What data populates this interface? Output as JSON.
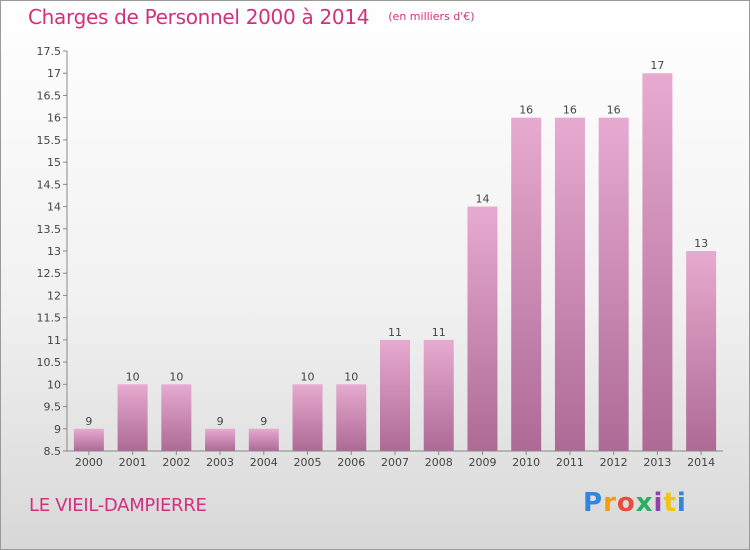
{
  "chart_data": {
    "type": "bar",
    "title": "Charges de Personnel 2000 à 2014",
    "unit_note": "(en milliers d'€)",
    "categories": [
      "2000",
      "2001",
      "2002",
      "2003",
      "2004",
      "2005",
      "2006",
      "2007",
      "2008",
      "2009",
      "2010",
      "2011",
      "2012",
      "2013",
      "2014"
    ],
    "values": [
      9,
      10,
      10,
      9,
      9,
      10,
      10,
      11,
      11,
      14,
      16,
      16,
      16,
      17,
      13
    ],
    "value_labels": [
      "9",
      "10",
      "10",
      "9",
      "9",
      "10",
      "10",
      "11",
      "11",
      "14",
      "16",
      "16",
      "16",
      "17",
      "13"
    ],
    "ylim": [
      8.5,
      17.5
    ],
    "yticks": [
      "8.5",
      "9",
      "9.5",
      "10",
      "10.5",
      "11",
      "11.5",
      "12",
      "12.5",
      "13",
      "13.5",
      "14",
      "14.5",
      "15",
      "15.5",
      "16",
      "16.5",
      "17",
      "17.5"
    ],
    "xlabel": "",
    "ylabel": "",
    "grid": false,
    "bar_color": "#c1709f",
    "bar_color_light": "#e7aad0",
    "bar_color_dark": "#ad6a95"
  },
  "footer": {
    "city": "LE VIEIL-DAMPIERRE",
    "logo_text": "Proxiti"
  }
}
